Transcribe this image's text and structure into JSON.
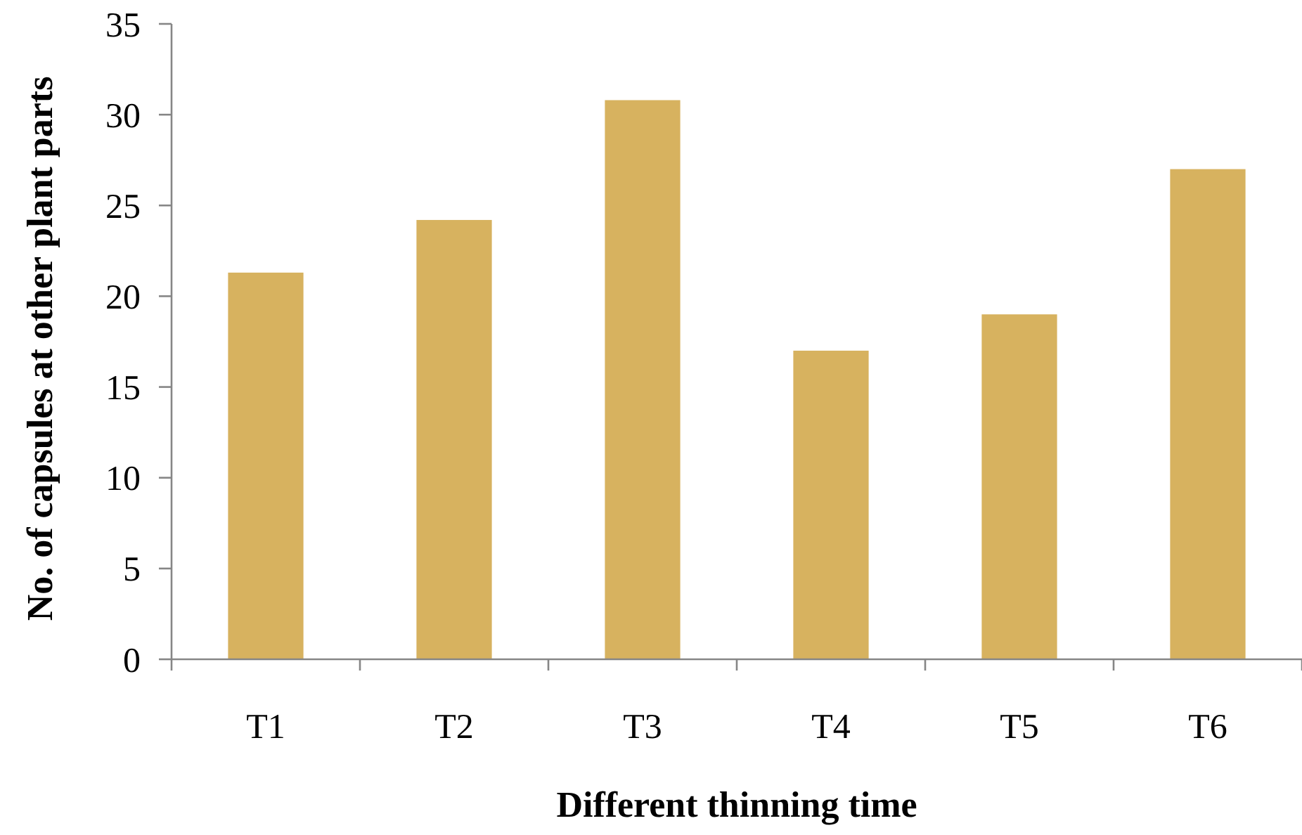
{
  "chart_data": {
    "type": "bar",
    "xlabel": "Different thinning time",
    "ylabel": "No. of capsules at other plant parts",
    "categories": [
      "T1",
      "T2",
      "T3",
      "T4",
      "T5",
      "T6"
    ],
    "values": [
      21.3,
      24.2,
      30.8,
      17.0,
      19.0,
      27.0
    ],
    "color": "#d7b25f",
    "ylim": [
      0,
      35
    ],
    "yticks": [
      0,
      5,
      10,
      15,
      20,
      25,
      30,
      35
    ],
    "grid": false
  }
}
